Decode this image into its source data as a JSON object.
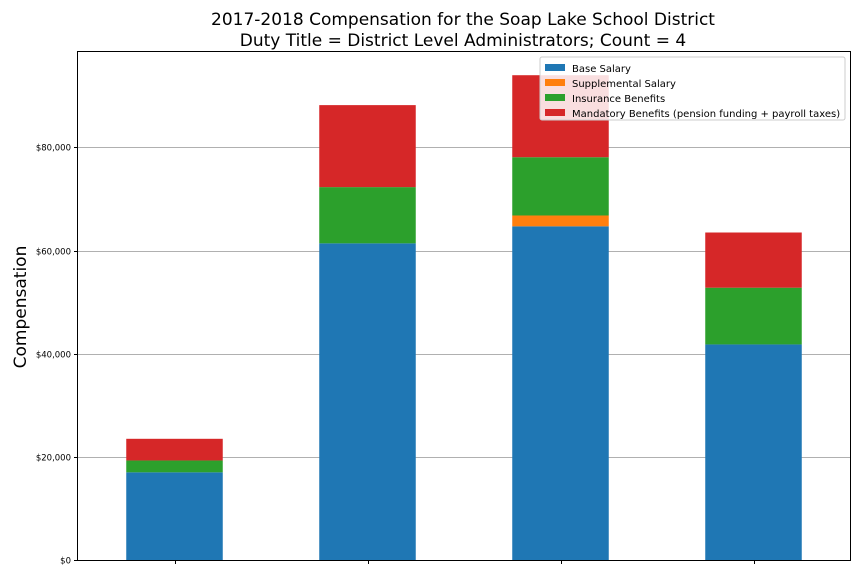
{
  "chart_data": {
    "type": "bar",
    "stacked": true,
    "title": "2017-2018 Compensation for the Soap Lake School District",
    "subtitle": "Duty Title = District Level Administrators; Count = 4",
    "xlabel": "",
    "ylabel": "Compensation",
    "categories": [
      "",
      "",
      "",
      ""
    ],
    "ylim": [
      0,
      98500
    ],
    "yticks": [
      0,
      20000,
      40000,
      60000,
      80000
    ],
    "ytick_labels": [
      "$0",
      "$20,000",
      "$40,000",
      "$60,000",
      "$80,000"
    ],
    "grid": "horizontal",
    "legend_position": "top-right",
    "series": [
      {
        "name": "Base Salary",
        "color": "#1f77b4",
        "values": [
          17000,
          61400,
          64700,
          41800
        ]
      },
      {
        "name": "Supplemental Salary",
        "color": "#ff7f0e",
        "values": [
          0,
          0,
          2100,
          0
        ]
      },
      {
        "name": "Insurance Benefits",
        "color": "#2ca02c",
        "values": [
          2300,
          10900,
          11300,
          11000
        ]
      },
      {
        "name": "Mandatory Benefits (pension funding + payroll taxes)",
        "color": "#d62728",
        "values": [
          4200,
          15900,
          15900,
          10700
        ]
      }
    ]
  }
}
